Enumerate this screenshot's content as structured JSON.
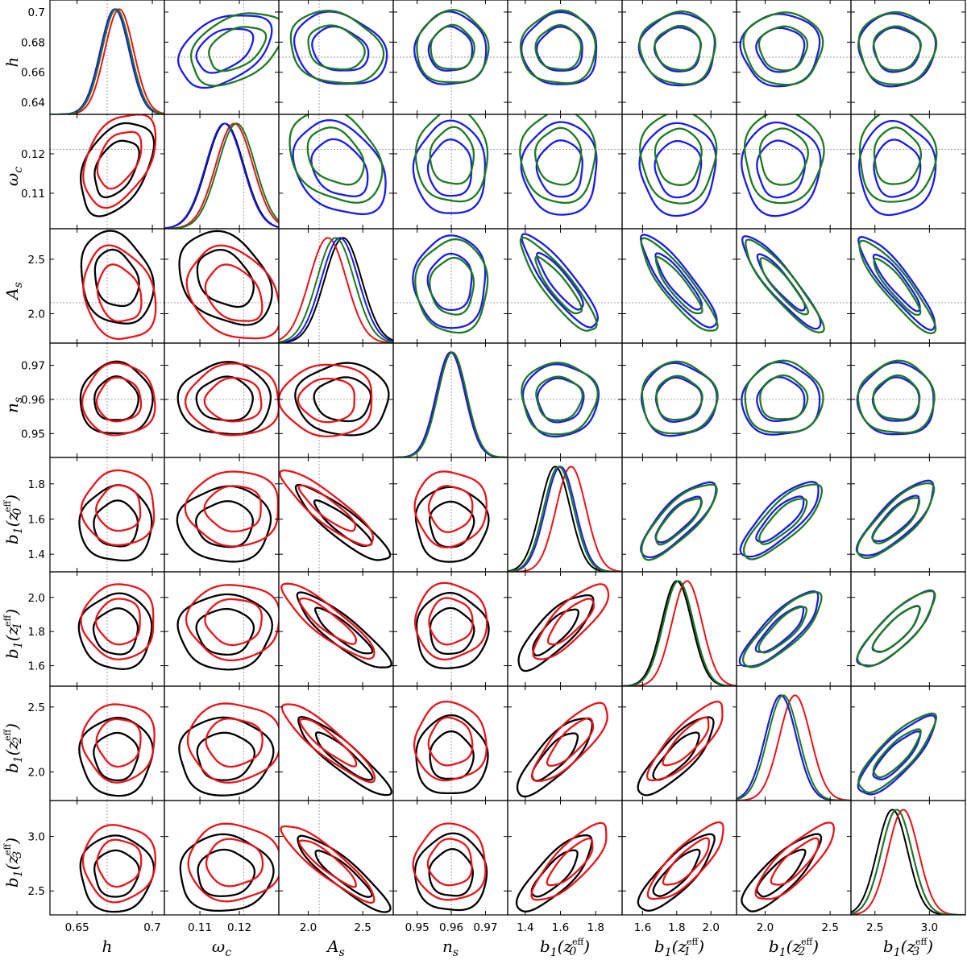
{
  "chart_data": {
    "type": "corner",
    "series": [
      {
        "key": "black",
        "color": "#000000"
      },
      {
        "key": "red",
        "color": "#e8141b"
      },
      {
        "key": "blue",
        "color": "#1a1aee"
      },
      {
        "key": "green",
        "color": "#1e7a1e"
      }
    ],
    "lower_triangle_series": [
      "black",
      "red"
    ],
    "upper_triangle_series": [
      "blue",
      "green"
    ],
    "parameters": [
      {
        "id": "h",
        "label": "h",
        "sub": "",
        "sup": "",
        "range": [
          0.632,
          0.708
        ],
        "ticks": [
          0.64,
          0.66,
          0.68,
          0.7
        ],
        "xticks": [
          0.65,
          0.7
        ],
        "truth": 0.67,
        "means": {
          "black": 0.676,
          "red": 0.678,
          "blue": 0.675,
          "green": 0.676
        },
        "sigma": 0.0096
      },
      {
        "id": "omega_c",
        "label": "ω",
        "sub": "c",
        "sup": "",
        "range": [
          0.101,
          0.13
        ],
        "ticks": [
          0.11,
          0.12
        ],
        "xticks": [
          0.11,
          0.12
        ],
        "truth": 0.1211,
        "means": {
          "black": 0.1164,
          "red": 0.1187,
          "blue": 0.1162,
          "green": 0.1193
        },
        "sigma": 0.0047
      },
      {
        "id": "A_s",
        "label": "A",
        "sub": "s",
        "sup": "",
        "range": [
          1.73,
          2.78
        ],
        "ticks": [
          2.0,
          2.5
        ],
        "xticks": [
          2.0,
          2.5
        ],
        "truth": 2.1,
        "means": {
          "black": 2.32,
          "red": 2.18,
          "blue": 2.29,
          "green": 2.25
        },
        "sigma": 0.17
      },
      {
        "id": "n_s",
        "label": "n",
        "sub": "s",
        "sup": "",
        "range": [
          0.943,
          0.9765
        ],
        "ticks": [
          0.95,
          0.96,
          0.97
        ],
        "xticks": [
          0.95,
          0.96,
          0.97
        ],
        "truth": 0.96,
        "means": {
          "black": 0.96,
          "red": 0.9598,
          "blue": 0.9598,
          "green": 0.9603
        },
        "sigma": 0.0042
      },
      {
        "id": "b1_z0",
        "label": "b",
        "sub": "1",
        "sup": "0",
        "range": [
          1.3,
          1.95
        ],
        "ticks": [
          1.4,
          1.6,
          1.8
        ],
        "xticks": [
          1.4,
          1.6,
          1.8
        ],
        "truth": null,
        "means": {
          "black": 1.57,
          "red": 1.66,
          "blue": 1.6,
          "green": 1.59
        },
        "sigma": 0.085
      },
      {
        "id": "b1_z1",
        "label": "b",
        "sub": "1",
        "sup": "1",
        "range": [
          1.48,
          2.15
        ],
        "ticks": [
          1.6,
          1.8,
          2.0
        ],
        "xticks": [
          1.6,
          1.8,
          2.0
        ],
        "truth": null,
        "means": {
          "black": 1.8,
          "red": 1.86,
          "blue": 1.81,
          "green": 1.81
        },
        "sigma": 0.088
      },
      {
        "id": "b1_z2",
        "label": "b",
        "sub": "1",
        "sup": "2",
        "range": [
          1.78,
          2.66
        ],
        "ticks": [
          2.0,
          2.5
        ],
        "xticks": [
          2.0,
          2.5
        ],
        "truth": null,
        "means": {
          "black": 2.12,
          "red": 2.23,
          "blue": 2.12,
          "green": 2.14
        },
        "sigma": 0.12
      },
      {
        "id": "b1_z3",
        "label": "b",
        "sub": "1",
        "sup": "3",
        "range": [
          2.28,
          3.33
        ],
        "ticks": [
          2.5,
          3.0
        ],
        "xticks": [
          2.5,
          3.0
        ],
        "truth": null,
        "means": {
          "black": 2.66,
          "red": 2.76,
          "blue": 2.7,
          "green": 2.7
        },
        "sigma": 0.14
      }
    ],
    "correlations": {
      "h|omega_c": 0.4,
      "A_s|omega_c": -0.3,
      "A_s|h": -0.2,
      "A_s|b1_z0": -0.88,
      "A_s|b1_z1": -0.88,
      "A_s|b1_z2": -0.9,
      "A_s|b1_z3": -0.9,
      "b1_z0|b1_z1": 0.8,
      "b1_z0|b1_z2": 0.8,
      "b1_z0|b1_z3": 0.8,
      "b1_z1|b1_z2": 0.82,
      "b1_z1|b1_z3": 0.82,
      "b1_z2|b1_z3": 0.82
    },
    "contour_levels_sigma": [
      1.52,
      2.5
    ]
  }
}
